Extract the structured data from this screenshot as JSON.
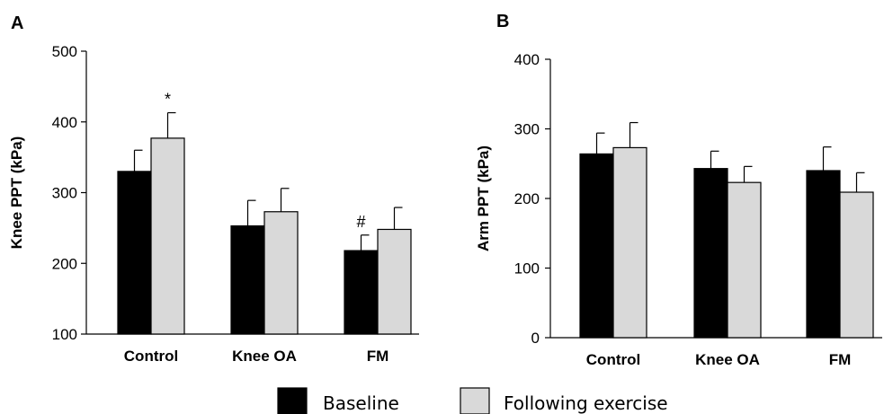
{
  "chart_data": [
    {
      "panel": "A",
      "type": "bar",
      "ylabel": "Knee PPT (kPa)",
      "ylim": [
        100,
        500
      ],
      "yticks": [
        "100",
        "200",
        "300",
        "400",
        "500"
      ],
      "categories": [
        "Control",
        "Knee OA",
        "FM"
      ],
      "series": [
        {
          "name": "Baseline",
          "values": [
            330,
            253,
            218
          ],
          "errors": [
            30,
            36,
            22
          ]
        },
        {
          "name": "Following exercise",
          "values": [
            377,
            273,
            248
          ],
          "errors": [
            36,
            33,
            31
          ]
        }
      ],
      "annotations": [
        {
          "text": "*",
          "category": "Control",
          "series": "Following exercise"
        },
        {
          "text": "#",
          "category": "FM",
          "series": "Baseline"
        }
      ]
    },
    {
      "panel": "B",
      "type": "bar",
      "ylabel": "Arm PPT (kPa)",
      "ylim": [
        0,
        400
      ],
      "yticks": [
        "0",
        "100",
        "200",
        "300",
        "400"
      ],
      "categories": [
        "Control",
        "Knee OA",
        "FM"
      ],
      "series": [
        {
          "name": "Baseline",
          "values": [
            264,
            243,
            240
          ],
          "errors": [
            30,
            25,
            34
          ]
        },
        {
          "name": "Following exercise",
          "values": [
            273,
            223,
            209
          ],
          "errors": [
            36,
            23,
            28
          ]
        }
      ],
      "annotations": []
    }
  ],
  "legend": {
    "placement": "bottom-center",
    "items": [
      {
        "label": "Baseline",
        "color": "#000000"
      },
      {
        "label": "Following exercise",
        "color": "#d9d9d9"
      }
    ]
  },
  "colors": {
    "baseline": "#000000",
    "following": "#d9d9d9",
    "axis": "#000000"
  }
}
